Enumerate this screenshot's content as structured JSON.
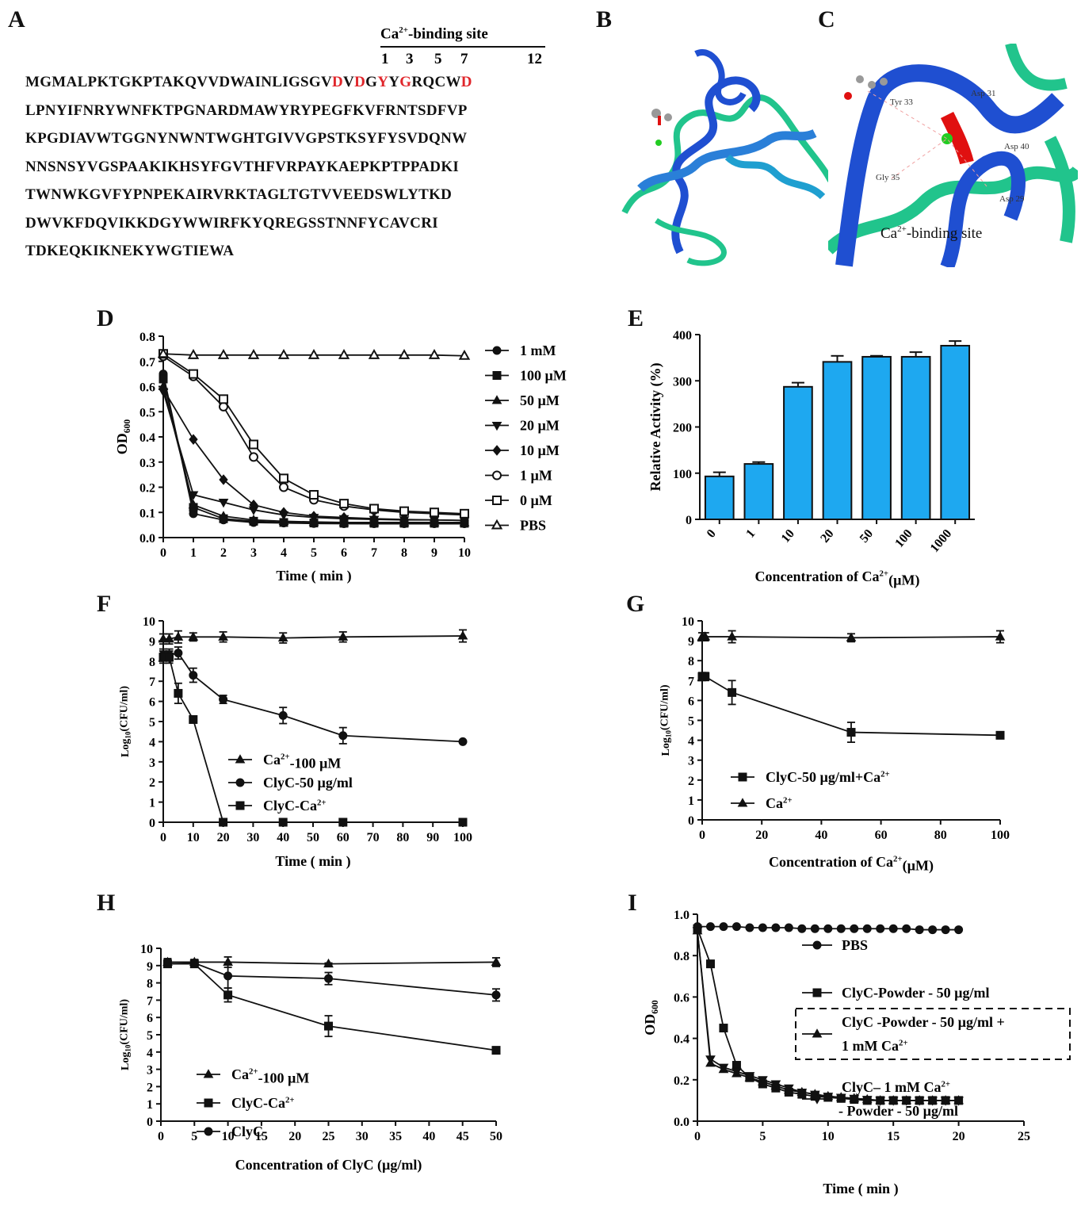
{
  "panel_labels": {
    "A": "A",
    "B": "B",
    "C": "C",
    "D": "D",
    "E": "E",
    "F": "F",
    "G": "G",
    "H": "H",
    "I": "I"
  },
  "sequence": {
    "ca_title": "Ca2+-binding site",
    "positions": [
      "1",
      "3",
      "5",
      "7",
      "12"
    ],
    "lines": [
      [
        {
          "t": "MGMALPKTGKPTAKQVVDWAINLIGSGV",
          "r": false
        },
        {
          "t": "D",
          "r": true
        },
        {
          "t": "V",
          "r": false
        },
        {
          "t": "D",
          "r": true
        },
        {
          "t": "G",
          "r": false
        },
        {
          "t": "Y",
          "r": true
        },
        {
          "t": "Y",
          "r": false
        },
        {
          "t": "G",
          "r": true
        },
        {
          "t": "RQCW",
          "r": false
        },
        {
          "t": "D",
          "r": true
        }
      ],
      [
        {
          "t": "LPNYIFNRYWNFKTPGNARDMAWYRYPEGFKVFRNTSDFVP",
          "r": false
        }
      ],
      [
        {
          "t": "KPGDIAVWTGGNYNWNTWGHTGIVVGPSTKSYFYSVDQNW",
          "r": false
        }
      ],
      [
        {
          "t": "NNSNSYVGSPAAKIKHSYFGVTHFVRPAYKAEPKPTPPADKI",
          "r": false
        }
      ],
      [
        {
          "t": "TWNWKGVFYPNPEKAIRVRKTAGLTGTVVEEDSWLYTKD",
          "r": false
        }
      ],
      [
        {
          "t": "DWVKFDQVIKKDGYWWIRFKYQREGSSTNNFYCAVCRI",
          "r": false
        }
      ],
      [
        {
          "t": "TDKEQKIKNEKYWGTIEWA",
          "r": false
        }
      ]
    ]
  },
  "structure": {
    "residues": [
      "Tyr 33",
      "Asp 31",
      "Asp 40",
      "Gly 35",
      "Asp 29"
    ],
    "site_label": "Ca2+-binding site",
    "colors": {
      "blue": "#1f4fd1",
      "green": "#21c48c",
      "red": "#e01010",
      "calcium": "#22cc22"
    }
  },
  "chart_data": [
    {
      "panel": "D",
      "type": "line",
      "xlabel": "Time ( min )",
      "ylabel": "OD600",
      "x": [
        0,
        1,
        2,
        3,
        4,
        5,
        6,
        7,
        8,
        9,
        10
      ],
      "xlim": [
        0,
        10
      ],
      "ylim": [
        0,
        0.8
      ],
      "xticks": [
        0,
        1,
        2,
        3,
        4,
        5,
        6,
        7,
        8,
        9,
        10
      ],
      "yticks": [
        0.0,
        0.1,
        0.2,
        0.3,
        0.4,
        0.5,
        0.6,
        0.7,
        0.8
      ],
      "legend_position": "right",
      "series": [
        {
          "name": "1 mM",
          "marker": "circle",
          "values": [
            0.65,
            0.095,
            0.07,
            0.06,
            0.058,
            0.056,
            0.055,
            0.055,
            0.055,
            0.055,
            0.055
          ]
        },
        {
          "name": "100 µM",
          "marker": "square",
          "values": [
            0.63,
            0.12,
            0.075,
            0.065,
            0.06,
            0.058,
            0.057,
            0.057,
            0.057,
            0.057,
            0.057
          ]
        },
        {
          "name": "50 µM",
          "marker": "triangle",
          "values": [
            0.6,
            0.13,
            0.085,
            0.07,
            0.065,
            0.062,
            0.06,
            0.06,
            0.06,
            0.06,
            0.06
          ]
        },
        {
          "name": "20 µM",
          "marker": "triangle-down",
          "values": [
            0.58,
            0.17,
            0.14,
            0.11,
            0.09,
            0.08,
            0.075,
            0.072,
            0.07,
            0.07,
            0.068
          ]
        },
        {
          "name": "10 µM",
          "marker": "diamond",
          "values": [
            0.59,
            0.39,
            0.23,
            0.13,
            0.1,
            0.085,
            0.08,
            0.075,
            0.072,
            0.07,
            0.068
          ]
        },
        {
          "name": "1 µM",
          "marker": "circle-open",
          "values": [
            0.72,
            0.64,
            0.52,
            0.32,
            0.2,
            0.15,
            0.125,
            0.11,
            0.1,
            0.095,
            0.09
          ]
        },
        {
          "name": "0 µM",
          "marker": "square-open",
          "values": [
            0.73,
            0.65,
            0.55,
            0.37,
            0.235,
            0.17,
            0.135,
            0.115,
            0.105,
            0.1,
            0.095
          ]
        },
        {
          "name": "PBS",
          "marker": "triangle-open",
          "values": [
            0.73,
            0.725,
            0.725,
            0.725,
            0.725,
            0.725,
            0.725,
            0.725,
            0.725,
            0.725,
            0.722
          ]
        }
      ]
    },
    {
      "panel": "E",
      "type": "bar",
      "xlabel": "Concentration of Ca2+(µM)",
      "ylabel": "Relative Activity (%)",
      "categories": [
        "0",
        "1",
        "10",
        "20",
        "50",
        "100",
        "1000"
      ],
      "values": [
        93,
        120,
        287,
        341,
        352,
        352,
        376
      ],
      "errors": [
        9,
        4,
        9,
        13,
        2,
        10,
        10
      ],
      "ylim": [
        0,
        400
      ],
      "yticks": [
        0,
        100,
        200,
        300,
        400
      ],
      "color": "#1ea8f0"
    },
    {
      "panel": "F",
      "type": "line",
      "xlabel": "Time ( min )",
      "ylabel": "Log10(CFU/ml)",
      "xlim": [
        0,
        100
      ],
      "ylim": [
        0,
        10
      ],
      "xticks": [
        0,
        10,
        20,
        30,
        40,
        50,
        60,
        70,
        80,
        90,
        100
      ],
      "yticks": [
        0,
        1,
        2,
        3,
        4,
        5,
        6,
        7,
        8,
        9,
        10
      ],
      "legend_position": "lower-left",
      "series": [
        {
          "name": "Ca2+-100 µM",
          "marker": "triangle",
          "x": [
            0,
            2,
            5,
            10,
            20,
            40,
            60,
            100
          ],
          "values": [
            9.1,
            9.1,
            9.2,
            9.2,
            9.2,
            9.15,
            9.2,
            9.25
          ],
          "errors": [
            0.25,
            0.25,
            0.3,
            0.2,
            0.25,
            0.25,
            0.25,
            0.3
          ]
        },
        {
          "name": "ClyC-50 µg/ml",
          "marker": "circle",
          "x": [
            0,
            2,
            5,
            10,
            20,
            40,
            60,
            100
          ],
          "values": [
            8.3,
            8.3,
            8.4,
            7.3,
            6.1,
            5.3,
            4.3,
            4.0
          ],
          "errors": [
            0.3,
            0.3,
            0.3,
            0.35,
            0.2,
            0.4,
            0.4,
            0.05
          ]
        },
        {
          "name": "ClyC-Ca2+",
          "marker": "square",
          "x": [
            0,
            2,
            5,
            10,
            20,
            40,
            60,
            100
          ],
          "values": [
            8.2,
            8.2,
            6.4,
            5.1,
            0,
            0,
            0,
            0
          ],
          "errors": [
            0.3,
            0.3,
            0.5,
            0.05,
            0,
            0,
            0,
            0
          ]
        }
      ]
    },
    {
      "panel": "G",
      "type": "line",
      "xlabel": "Concentration of Ca2+(µM)",
      "ylabel": "Log10(CFU/ml)",
      "xlim": [
        0,
        100
      ],
      "ylim": [
        0,
        10
      ],
      "xticks": [
        0,
        20,
        40,
        60,
        80,
        100
      ],
      "yticks": [
        0,
        1,
        2,
        3,
        4,
        5,
        6,
        7,
        8,
        9,
        10
      ],
      "legend_position": "lower-left",
      "series": [
        {
          "name": "ClyC-50 µg/ml+Ca2+",
          "marker": "square",
          "x": [
            0,
            1,
            10,
            50,
            100
          ],
          "values": [
            7.2,
            7.2,
            6.4,
            4.4,
            4.25
          ],
          "errors": [
            0.2,
            0.2,
            0.6,
            0.5,
            0.05
          ]
        },
        {
          "name": "Ca2+",
          "marker": "triangle",
          "x": [
            0,
            1,
            10,
            50,
            100
          ],
          "values": [
            9.2,
            9.2,
            9.2,
            9.15,
            9.2
          ],
          "errors": [
            0.2,
            0.2,
            0.3,
            0.2,
            0.3
          ]
        }
      ]
    },
    {
      "panel": "H",
      "type": "line",
      "xlabel": "Concentration of ClyC (µg/ml)",
      "ylabel": "Log10(CFU/ml)",
      "xlim": [
        0,
        50
      ],
      "ylim": [
        0,
        10
      ],
      "xticks": [
        0,
        5,
        10,
        15,
        20,
        25,
        30,
        35,
        40,
        45,
        50
      ],
      "yticks": [
        0,
        1,
        2,
        3,
        4,
        5,
        6,
        7,
        8,
        9,
        10
      ],
      "legend_position": "lower-left",
      "series": [
        {
          "name": "Ca2+-100 µM",
          "marker": "triangle",
          "x": [
            1,
            5,
            10,
            25,
            50
          ],
          "values": [
            9.2,
            9.2,
            9.2,
            9.1,
            9.2
          ],
          "errors": [
            0.2,
            0.15,
            0.3,
            0.05,
            0.25
          ]
        },
        {
          "name": "ClyC-Ca2+",
          "marker": "square",
          "x": [
            1,
            5,
            10,
            25,
            50
          ],
          "values": [
            9.1,
            9.1,
            7.3,
            5.5,
            4.1
          ],
          "errors": [
            0.15,
            0.2,
            0.4,
            0.6,
            0.05
          ]
        },
        {
          "name": "ClyC",
          "marker": "circle",
          "x": [
            1,
            5,
            10,
            25,
            50
          ],
          "values": [
            9.2,
            9.15,
            8.4,
            8.25,
            7.3
          ],
          "errors": [
            0.2,
            0.2,
            0.7,
            0.35,
            0.35
          ]
        }
      ]
    },
    {
      "panel": "I",
      "type": "line",
      "xlabel": "Time ( min )",
      "ylabel": "OD600",
      "xlim": [
        0,
        25
      ],
      "ylim": [
        0,
        1.0
      ],
      "xticks": [
        0,
        5,
        10,
        15,
        20,
        25
      ],
      "yticks": [
        0.0,
        0.2,
        0.4,
        0.6,
        0.8,
        1.0
      ],
      "legend_position": "right",
      "series": [
        {
          "name": "PBS",
          "marker": "circle",
          "x": [
            0,
            1,
            2,
            3,
            4,
            5,
            6,
            7,
            8,
            9,
            10,
            11,
            12,
            13,
            14,
            15,
            16,
            17,
            18,
            19,
            20
          ],
          "values": [
            0.94,
            0.94,
            0.94,
            0.94,
            0.935,
            0.935,
            0.935,
            0.935,
            0.93,
            0.93,
            0.93,
            0.93,
            0.93,
            0.93,
            0.93,
            0.93,
            0.93,
            0.925,
            0.925,
            0.925,
            0.925
          ]
        },
        {
          "name": "ClyC-Powder - 50 µg/ml",
          "marker": "square",
          "x": [
            0,
            1,
            2,
            3,
            4,
            5,
            6,
            7,
            8,
            9,
            10,
            11,
            12,
            13,
            14,
            15,
            16,
            17,
            18,
            19,
            20
          ],
          "values": [
            0.93,
            0.76,
            0.45,
            0.27,
            0.21,
            0.18,
            0.16,
            0.14,
            0.13,
            0.12,
            0.115,
            0.11,
            0.105,
            0.1,
            0.1,
            0.1,
            0.1,
            0.1,
            0.1,
            0.1,
            0.1
          ]
        },
        {
          "name": "ClyC -Powder - 50 µg/ml + 1 mM Ca2+",
          "marker": "triangle",
          "x": [
            0,
            1,
            2,
            3,
            4,
            5,
            6,
            7,
            8,
            9,
            10,
            11,
            12,
            13,
            14,
            15,
            16,
            17,
            18,
            19,
            20
          ],
          "values": [
            0.92,
            0.28,
            0.25,
            0.23,
            0.21,
            0.19,
            0.17,
            0.15,
            0.14,
            0.13,
            0.12,
            0.115,
            0.11,
            0.105,
            0.1,
            0.1,
            0.1,
            0.1,
            0.1,
            0.1,
            0.1
          ]
        },
        {
          "name": "ClyC– 1 mM Ca2+ - Powder - 50 µg/ml",
          "marker": "triangle-down",
          "x": [
            0,
            1,
            2,
            3,
            4,
            5,
            6,
            7,
            8,
            9,
            10,
            11,
            12,
            13,
            14,
            15,
            16,
            17,
            18,
            19,
            20
          ],
          "values": [
            0.92,
            0.3,
            0.26,
            0.24,
            0.22,
            0.2,
            0.18,
            0.16,
            0.14,
            0.13,
            0.12,
            0.115,
            0.11,
            0.105,
            0.1,
            0.1,
            0.1,
            0.1,
            0.1,
            0.1,
            0.1
          ]
        }
      ]
    }
  ]
}
